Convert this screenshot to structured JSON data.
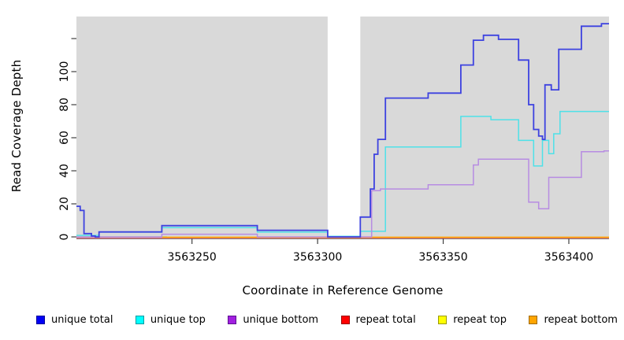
{
  "figure": {
    "x_axis_title": "Coordinate in Reference Genome",
    "y_axis_title": "Read Coverage Depth"
  },
  "chart_data": {
    "type": "line",
    "subtype": "step-after-coverage-plot",
    "title": "",
    "xlabel": "Coordinate in Reference Genome",
    "ylabel": "Read Coverage Depth",
    "x_domain": [
      3563204,
      3563416
    ],
    "y_domain": [
      0,
      133
    ],
    "grid": false,
    "plot_bg_color": "#d9d9d9",
    "gap_region": {
      "x_start": 3563304,
      "x_end": 3563317
    },
    "x_ticks": [
      {
        "value": 3563250,
        "label": "3563250"
      },
      {
        "value": 3563300,
        "label": "3563300"
      },
      {
        "value": 3563350,
        "label": "3563350"
      },
      {
        "value": 3563400,
        "label": "3563400"
      }
    ],
    "y_ticks": [
      {
        "value": 0,
        "label": "0"
      },
      {
        "value": 20,
        "label": "20"
      },
      {
        "value": 40,
        "label": "40"
      },
      {
        "value": 60,
        "label": "60"
      },
      {
        "value": 80,
        "label": "80"
      },
      {
        "value": 100,
        "label": "100"
      },
      {
        "value": 120,
        "label": ""
      }
    ],
    "series": [
      {
        "name": "repeat top",
        "color": "#a8d98c",
        "points": [
          [
            3563204,
            0
          ],
          [
            3563240,
            0
          ]
        ]
      },
      {
        "name": "repeat total",
        "color": "#e06a78",
        "points": [
          [
            3563204,
            0
          ],
          [
            3563416,
            0
          ]
        ]
      },
      {
        "name": "repeat bottom",
        "color": "#ffa500",
        "points": [
          [
            3563238,
            0
          ],
          [
            3563416,
            0
          ]
        ]
      },
      {
        "name": "unique top",
        "color": "#4ee1e8",
        "points": [
          [
            3563204,
            0.5
          ],
          [
            3563213,
            2.5
          ],
          [
            3563238,
            5.2
          ],
          [
            3563276,
            2.5
          ],
          [
            3563304,
            0
          ],
          [
            3563317,
            3
          ],
          [
            3563327,
            54
          ],
          [
            3563357,
            72.5
          ],
          [
            3563369,
            70.5
          ],
          [
            3563380,
            58
          ],
          [
            3563386,
            42.5
          ],
          [
            3563389.5,
            58
          ],
          [
            3563392,
            50
          ],
          [
            3563394,
            62
          ],
          [
            3563396.5,
            75.5
          ],
          [
            3563416,
            75.5
          ]
        ]
      },
      {
        "name": "unique bottom",
        "color": "#b78ce2",
        "points": [
          [
            3563204,
            0
          ],
          [
            3563238,
            1.6
          ],
          [
            3563276,
            0
          ],
          [
            3563321.5,
            28
          ],
          [
            3563325,
            29
          ],
          [
            3563344,
            31.5
          ],
          [
            3563362,
            43.5
          ],
          [
            3563364,
            47
          ],
          [
            3563384,
            21
          ],
          [
            3563388,
            17
          ],
          [
            3563392,
            36
          ],
          [
            3563405,
            51.5
          ],
          [
            3563414,
            52
          ],
          [
            3563416,
            52
          ]
        ]
      },
      {
        "name": "unique total",
        "color": "#3d42e0",
        "points": [
          [
            3563204,
            18.5
          ],
          [
            3563205.5,
            16
          ],
          [
            3563207,
            2
          ],
          [
            3563210,
            0.5
          ],
          [
            3563211.5,
            0
          ],
          [
            3563213,
            3
          ],
          [
            3563238,
            6.8
          ],
          [
            3563276,
            4
          ],
          [
            3563304,
            0
          ],
          [
            3563317,
            12
          ],
          [
            3563321,
            29
          ],
          [
            3563322.5,
            50
          ],
          [
            3563324,
            59
          ],
          [
            3563327,
            84
          ],
          [
            3563344,
            87
          ],
          [
            3563357,
            104
          ],
          [
            3563362,
            119
          ],
          [
            3563366,
            122
          ],
          [
            3563372,
            119.5
          ],
          [
            3563380,
            107
          ],
          [
            3563384,
            80
          ],
          [
            3563386,
            65
          ],
          [
            3563388,
            61
          ],
          [
            3563389.5,
            59
          ],
          [
            3563390.5,
            92
          ],
          [
            3563393,
            89
          ],
          [
            3563396,
            113.5
          ],
          [
            3563405,
            127.5
          ],
          [
            3563413,
            129
          ],
          [
            3563416,
            129
          ]
        ]
      }
    ],
    "legend": [
      {
        "label": "unique total",
        "fill": "#0000f5",
        "border": "#00009a"
      },
      {
        "label": "unique top",
        "fill": "#00ffff",
        "border": "#009aa0"
      },
      {
        "label": "unique bottom",
        "fill": "#a21fe0",
        "border": "#5c1090"
      },
      {
        "label": "repeat total",
        "fill": "#ff0000",
        "border": "#990000"
      },
      {
        "label": "repeat top",
        "fill": "#ffff00",
        "border": "#9a9a00"
      },
      {
        "label": "repeat bottom",
        "fill": "#ffa500",
        "border": "#a06a00"
      }
    ],
    "legend_position": "bottom"
  }
}
